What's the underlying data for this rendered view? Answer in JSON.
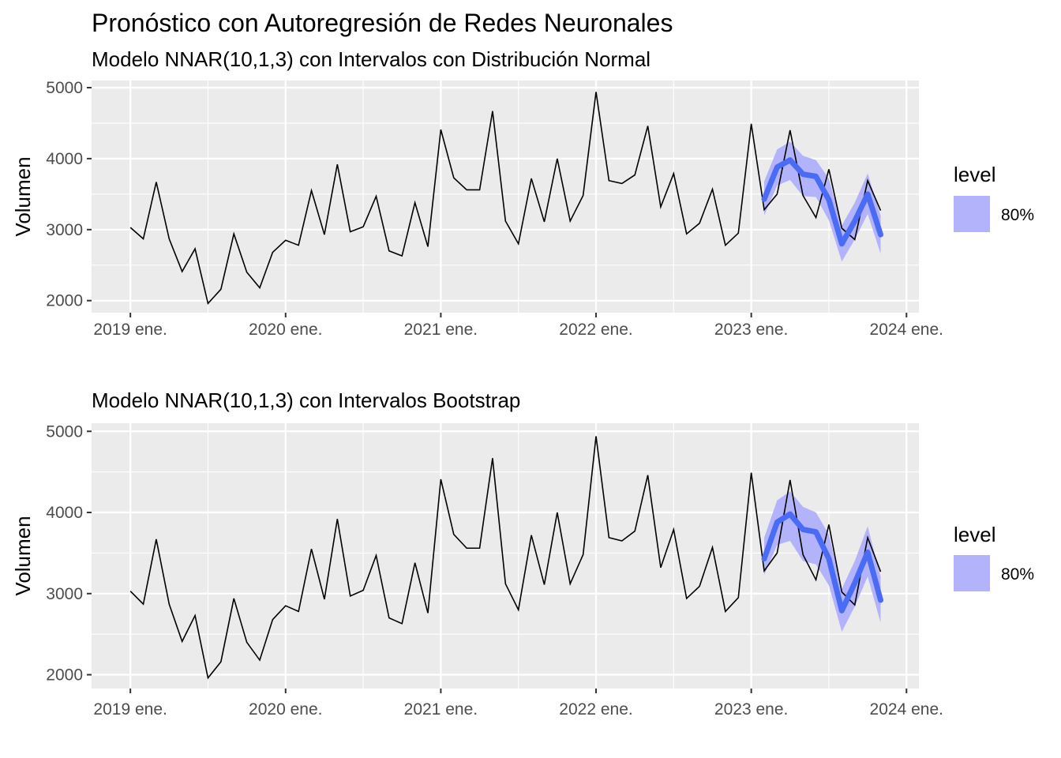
{
  "title": "Pronóstico con Autoregresión de Redes Neuronales",
  "colors": {
    "panel": "#ebebeb",
    "grid": "#ffffff",
    "actual": "#000000",
    "forecast": "#4a6cf5",
    "interval": "#b3b3fb"
  },
  "chart_data": [
    {
      "type": "line",
      "subtitle": "Modelo NNAR(10,1,3) con Intervalos con Distribución Normal",
      "xlabel": "",
      "ylabel": "Volumen",
      "xlim": [
        2018.75,
        2024.08
      ],
      "ylim": [
        1830,
        5100
      ],
      "x_ticks": [
        2019,
        2020,
        2021,
        2022,
        2023,
        2024
      ],
      "x_tick_labels": [
        "2019 ene.",
        "2020 ene.",
        "2021 ene.",
        "2022 ene.",
        "2023 ene.",
        "2024 ene."
      ],
      "y_ticks": [
        2000,
        3000,
        4000,
        5000
      ],
      "y_tick_labels": [
        "2000",
        "3000",
        "4000",
        "5000"
      ],
      "grid": true,
      "legend": {
        "title": "level",
        "entries": [
          "80%"
        ],
        "position": "right"
      },
      "actual": {
        "start": "2019-01",
        "values": [
          3030,
          2870,
          3670,
          2870,
          2410,
          2730,
          1960,
          2160,
          2940,
          2400,
          2180,
          2680,
          2850,
          2780,
          3550,
          2930,
          3920,
          2970,
          3040,
          3470,
          2700,
          2630,
          3380,
          2760,
          4410,
          3730,
          3560,
          3560,
          4670,
          3120,
          2800,
          3720,
          3110,
          4000,
          3120,
          3480,
          4940,
          3690,
          3650,
          3770,
          4460,
          3320,
          3790,
          2940,
          3090,
          3570,
          2780,
          2950,
          4490,
          3280,
          3500,
          4400,
          3480,
          3170,
          3850,
          3020,
          2860,
          3690,
          3270
        ]
      },
      "forecast": {
        "start": "2023-02",
        "mean": [
          3430,
          3880,
          3980,
          3780,
          3750,
          3420,
          2800,
          3120,
          3500,
          2930
        ],
        "lo80": [
          3200,
          3620,
          3700,
          3470,
          3460,
          3130,
          2550,
          2860,
          3220,
          2660
        ],
        "hi80": [
          3680,
          4130,
          4240,
          4040,
          3980,
          3720,
          3060,
          3380,
          3790,
          3200
        ]
      }
    },
    {
      "type": "line",
      "subtitle": "Modelo NNAR(10,1,3) con Intervalos Bootstrap",
      "xlabel": "",
      "ylabel": "Volumen",
      "xlim": [
        2018.75,
        2024.08
      ],
      "ylim": [
        1830,
        5100
      ],
      "x_ticks": [
        2019,
        2020,
        2021,
        2022,
        2023,
        2024
      ],
      "x_tick_labels": [
        "2019 ene.",
        "2020 ene.",
        "2021 ene.",
        "2022 ene.",
        "2023 ene.",
        "2024 ene."
      ],
      "y_ticks": [
        2000,
        3000,
        4000,
        5000
      ],
      "y_tick_labels": [
        "2000",
        "3000",
        "4000",
        "5000"
      ],
      "grid": true,
      "legend": {
        "title": "level",
        "entries": [
          "80%"
        ],
        "position": "right"
      },
      "actual": {
        "start": "2019-01",
        "values": [
          3030,
          2870,
          3670,
          2870,
          2410,
          2730,
          1960,
          2160,
          2940,
          2400,
          2180,
          2680,
          2850,
          2780,
          3550,
          2930,
          3920,
          2970,
          3040,
          3470,
          2700,
          2630,
          3380,
          2760,
          4410,
          3730,
          3560,
          3560,
          4670,
          3120,
          2800,
          3720,
          3110,
          4000,
          3120,
          3480,
          4940,
          3690,
          3650,
          3770,
          4460,
          3320,
          3790,
          2940,
          3090,
          3570,
          2780,
          2950,
          4490,
          3280,
          3500,
          4400,
          3480,
          3170,
          3850,
          3020,
          2860,
          3690,
          3270
        ]
      },
      "forecast": {
        "start": "2023-02",
        "mean": [
          3430,
          3880,
          3980,
          3790,
          3760,
          3430,
          2790,
          3130,
          3510,
          2920
        ],
        "lo80": [
          3230,
          3600,
          3650,
          3400,
          3360,
          3100,
          2530,
          2840,
          3210,
          2640
        ],
        "hi80": [
          3690,
          4150,
          4260,
          4070,
          4000,
          3730,
          3060,
          3400,
          3830,
          3210
        ]
      }
    }
  ]
}
